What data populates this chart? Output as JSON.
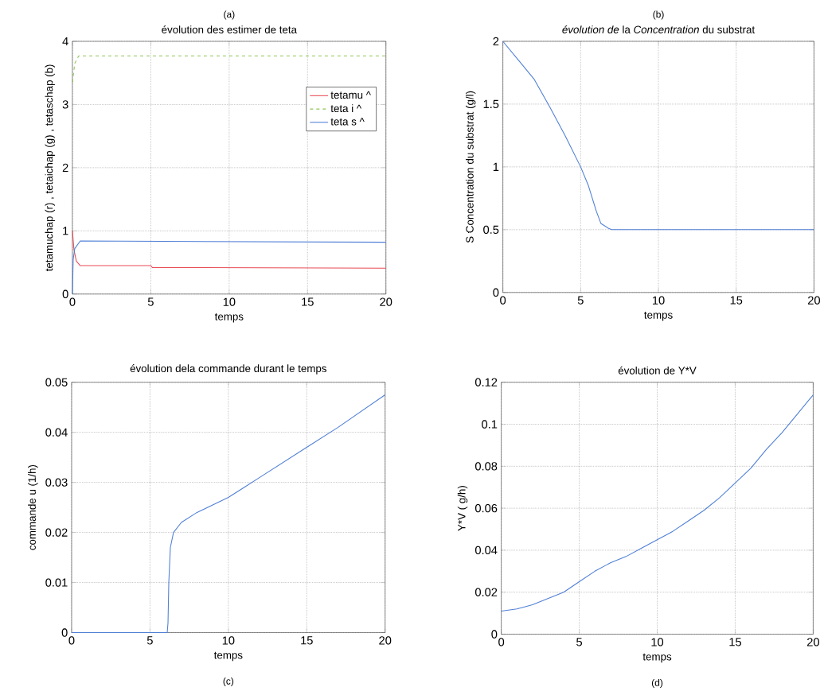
{
  "chart_data": [
    {
      "type": "line",
      "title": "évolution des estimer de teta",
      "xlabel": "temps",
      "ylabel": "tetamuchap (r) , tetaichap (g) , tetaschap (b)",
      "annotations": [
        "(a)"
      ],
      "xlim": [
        0,
        20
      ],
      "ylim": [
        0,
        4
      ],
      "xticks": [
        0,
        5,
        10,
        15,
        20
      ],
      "yticks": [
        0,
        1,
        2,
        3,
        4
      ],
      "grid": true,
      "legend": "top right",
      "series": [
        {
          "name": "tetamu ^",
          "color": "#e84c57",
          "line_style": "solid",
          "x": [
            0,
            0.1,
            0.25,
            0.5,
            5,
            5.1,
            20
          ],
          "values": [
            1.0,
            0.7,
            0.52,
            0.45,
            0.45,
            0.42,
            0.41
          ]
        },
        {
          "name": "teta i ^",
          "color": "#8fc55a",
          "line_style": "dashed",
          "x": [
            0,
            0.15,
            0.4,
            20
          ],
          "values": [
            3.35,
            3.65,
            3.77,
            3.77
          ]
        },
        {
          "name": "teta s ^",
          "color": "#4f7fd6",
          "line_style": "solid",
          "x": [
            0,
            0.05,
            0.15,
            0.5,
            20
          ],
          "values": [
            0,
            0.55,
            0.72,
            0.84,
            0.82
          ]
        }
      ]
    },
    {
      "type": "line",
      "title": "*évolution de* la *Concentration* du substrat",
      "xlabel": "temps",
      "ylabel": "S Concentration du substrat (g/l)",
      "annotations": [
        "(b)"
      ],
      "xlim": [
        0,
        20
      ],
      "ylim": [
        0,
        2
      ],
      "xticks": [
        0,
        5,
        10,
        15,
        20
      ],
      "yticks": [
        0,
        0.5,
        1,
        1.5,
        2
      ],
      "grid": true,
      "color": "#4f7fd6",
      "x": [
        0,
        1,
        2,
        3,
        4,
        5,
        5.5,
        6,
        6.3,
        6.8,
        7,
        20
      ],
      "values": [
        2.0,
        1.85,
        1.7,
        1.48,
        1.25,
        1.0,
        0.85,
        0.65,
        0.55,
        0.51,
        0.5,
        0.5
      ]
    },
    {
      "type": "line",
      "title": "évolution dela commande durant le temps",
      "xlabel": "temps",
      "ylabel": "commande u (1/h)",
      "annotations": [
        "(c)"
      ],
      "xlim": [
        0,
        20
      ],
      "ylim": [
        0,
        0.05
      ],
      "xticks": [
        0,
        5,
        10,
        15,
        20
      ],
      "yticks": [
        0,
        0.01,
        0.02,
        0.03,
        0.04,
        0.05
      ],
      "grid": true,
      "color": "#4f7fd6",
      "x": [
        0,
        6.1,
        6.15,
        6.2,
        6.3,
        6.5,
        7,
        8,
        10,
        11,
        12,
        15,
        17,
        20
      ],
      "values": [
        0,
        0,
        0.002,
        0.01,
        0.017,
        0.02,
        0.022,
        0.024,
        0.027,
        0.029,
        0.031,
        0.037,
        0.041,
        0.0475
      ]
    },
    {
      "type": "line",
      "title": "évolution de Y*V",
      "xlabel": "temps",
      "ylabel": "Y*V ( g/h)",
      "annotations": [
        "(d)"
      ],
      "xlim": [
        0,
        20
      ],
      "ylim": [
        0,
        0.12
      ],
      "xticks": [
        0,
        5,
        10,
        15,
        20
      ],
      "yticks": [
        0,
        0.02,
        0.04,
        0.06,
        0.08,
        0.1,
        0.12
      ],
      "grid": true,
      "color": "#4f7fd6",
      "x": [
        0,
        1,
        2,
        3,
        4,
        5,
        6,
        7,
        8,
        9,
        10,
        11,
        12,
        13,
        14,
        15,
        16,
        17,
        18,
        19,
        20
      ],
      "values": [
        0.011,
        0.012,
        0.014,
        0.017,
        0.02,
        0.025,
        0.03,
        0.034,
        0.037,
        0.041,
        0.045,
        0.049,
        0.054,
        0.059,
        0.065,
        0.072,
        0.079,
        0.088,
        0.096,
        0.105,
        0.114
      ]
    }
  ]
}
